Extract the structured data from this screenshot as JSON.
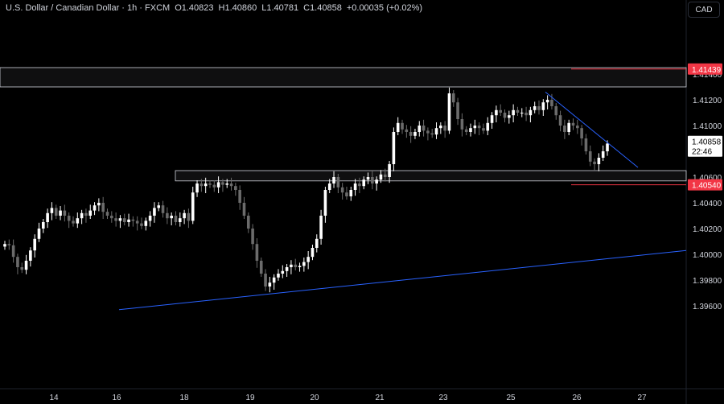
{
  "header": {
    "symbol": "U.S. Dollar / Canadian Dollar · 1h · FXCM",
    "open": "O1.40823",
    "high": "H1.40860",
    "low": "L1.40781",
    "close": "C1.40858",
    "change": "+0.00035 (+0.02%)"
  },
  "currency_button": "CAD",
  "colors": {
    "background": "#000000",
    "up_candle": "#ffffff",
    "down_candle": "#6b6b6b",
    "resistance_line": "#f23645",
    "trend_line": "#2962ff",
    "zone_border": "#d1d4dc"
  },
  "chart_data": {
    "type": "candlestick",
    "ylim": [
      1.3955,
      1.415
    ],
    "yticks": [
      "1.40000",
      "1.40200",
      "1.40400",
      "1.40600",
      "1.41000",
      "1.41200",
      "1.41400",
      "1.39600",
      "1.39800"
    ],
    "xticks": [
      "14",
      "16",
      "18",
      "19",
      "20",
      "21",
      "23",
      "25",
      "26",
      "27"
    ],
    "price_labels": [
      {
        "name": "resistance",
        "value": "1.41439",
        "color": "#f23645"
      },
      {
        "name": "support",
        "value": "1.40540",
        "color": "#f23645"
      },
      {
        "name": "last-price",
        "value": "1.40858",
        "countdown": "22:46",
        "color": "#ffffff"
      }
    ],
    "zones": [
      {
        "name": "resistance-zone",
        "from": 1.413,
        "to": 1.4145
      },
      {
        "name": "support-zone",
        "from": 1.4057,
        "to": 1.4065
      }
    ],
    "close_series": [
      1.4008,
      1.4007,
      1.3998,
      1.399,
      1.3988,
      1.3995,
      1.4003,
      1.4012,
      1.402,
      1.4025,
      1.4032,
      1.4036,
      1.403,
      1.4034,
      1.403,
      1.4026,
      1.4024,
      1.4028,
      1.4032,
      1.403,
      1.4034,
      1.4038,
      1.404,
      1.4033,
      1.403,
      1.4028,
      1.4026,
      1.4028,
      1.4025,
      1.4027,
      1.4026,
      1.4024,
      1.4022,
      1.4026,
      1.403,
      1.4036,
      1.4038,
      1.4032,
      1.4028,
      1.403,
      1.4025,
      1.4028,
      1.4032,
      1.4026,
      1.4048,
      1.4055,
      1.4053,
      1.4055,
      1.4054,
      1.4052,
      1.4056,
      1.4054,
      1.4055,
      1.4053,
      1.405,
      1.404,
      1.403,
      1.402,
      1.4008,
      1.3995,
      1.3985,
      1.3975,
      1.3978,
      1.3982,
      1.3985,
      1.3987,
      1.399,
      1.3992,
      1.399,
      1.3991,
      1.3994,
      1.3998,
      1.4005,
      1.4012,
      1.403,
      1.405,
      1.4055,
      1.406,
      1.4052,
      1.4048,
      1.4045,
      1.405,
      1.4055,
      1.4053,
      1.4058,
      1.406,
      1.4055,
      1.4058,
      1.4062,
      1.406,
      1.407,
      1.4095,
      1.4102,
      1.4097,
      1.4095,
      1.4092,
      1.4095,
      1.41,
      1.4096,
      1.4094,
      1.4093,
      1.4098,
      1.41,
      1.4096,
      1.4125,
      1.4118,
      1.4105,
      1.4097,
      1.4095,
      1.4098,
      1.41,
      1.4098,
      1.4096,
      1.4102,
      1.4108,
      1.4112,
      1.411,
      1.4106,
      1.4108,
      1.4112,
      1.411,
      1.411,
      1.4108,
      1.4112,
      1.4115,
      1.4112,
      1.4118,
      1.412,
      1.4115,
      1.4108,
      1.41,
      1.4095,
      1.4102,
      1.41,
      1.4098,
      1.409,
      1.408,
      1.4072,
      1.407,
      1.4075,
      1.408,
      1.4086
    ],
    "trend_lines": [
      {
        "name": "rising-support-trendline",
        "from": {
          "x": "16",
          "y": 1.3957
        },
        "to": {
          "x": "27+",
          "y": 1.4003
        }
      },
      {
        "name": "falling-resistance-trendline",
        "from": {
          "x": "25",
          "y": 1.4126
        },
        "to": {
          "x": "26.5",
          "y": 1.4067
        }
      }
    ]
  }
}
